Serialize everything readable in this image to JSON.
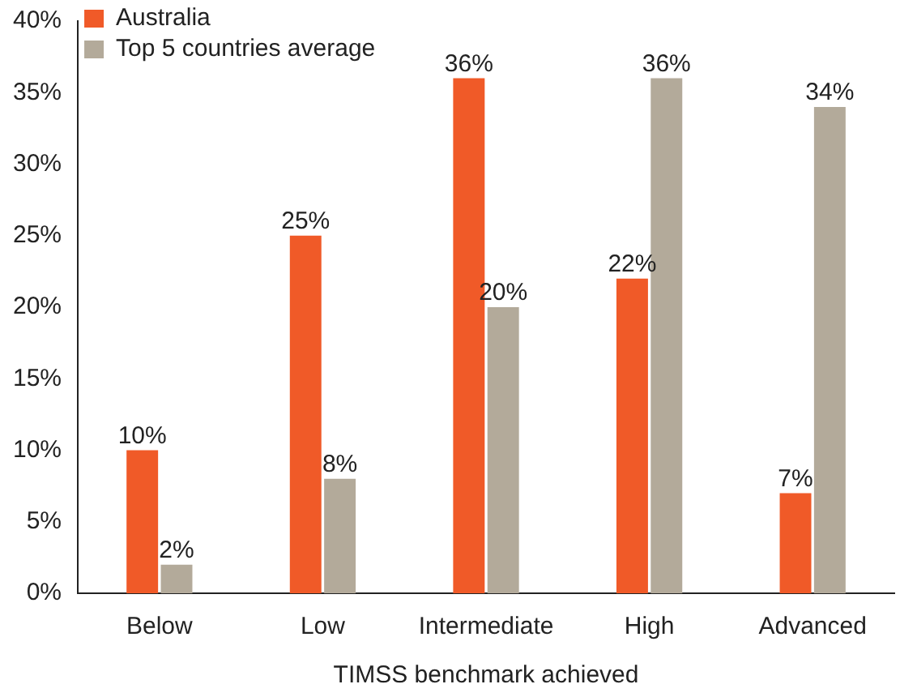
{
  "chart_data": {
    "type": "bar",
    "xlabel": "TIMSS benchmark achieved",
    "categories": [
      "Below",
      "Low",
      "Intermediate",
      "High",
      "Advanced"
    ],
    "series": [
      {
        "name": "Australia",
        "color": "#f05a28",
        "values": [
          10,
          25,
          36,
          22,
          7
        ],
        "value_labels": [
          "10%",
          "25%",
          "36%",
          "22%",
          "7%"
        ]
      },
      {
        "name": "Top 5 countries average",
        "color": "#b3aa9a",
        "values": [
          2,
          8,
          20,
          36,
          34
        ],
        "value_labels": [
          "2%",
          "8%",
          "20%",
          "36%",
          "34%"
        ]
      }
    ],
    "ylim": [
      0,
      40
    ],
    "yticks": [
      {
        "value": 0,
        "label": "0%"
      },
      {
        "value": 5,
        "label": "5%"
      },
      {
        "value": 10,
        "label": "10%"
      },
      {
        "value": 15,
        "label": "15%"
      },
      {
        "value": 20,
        "label": "20%"
      },
      {
        "value": 25,
        "label": "25%"
      },
      {
        "value": 30,
        "label": "30%"
      },
      {
        "value": 35,
        "label": "35%"
      },
      {
        "value": 40,
        "label": "40%"
      }
    ],
    "grid": false,
    "legend": "top left"
  }
}
